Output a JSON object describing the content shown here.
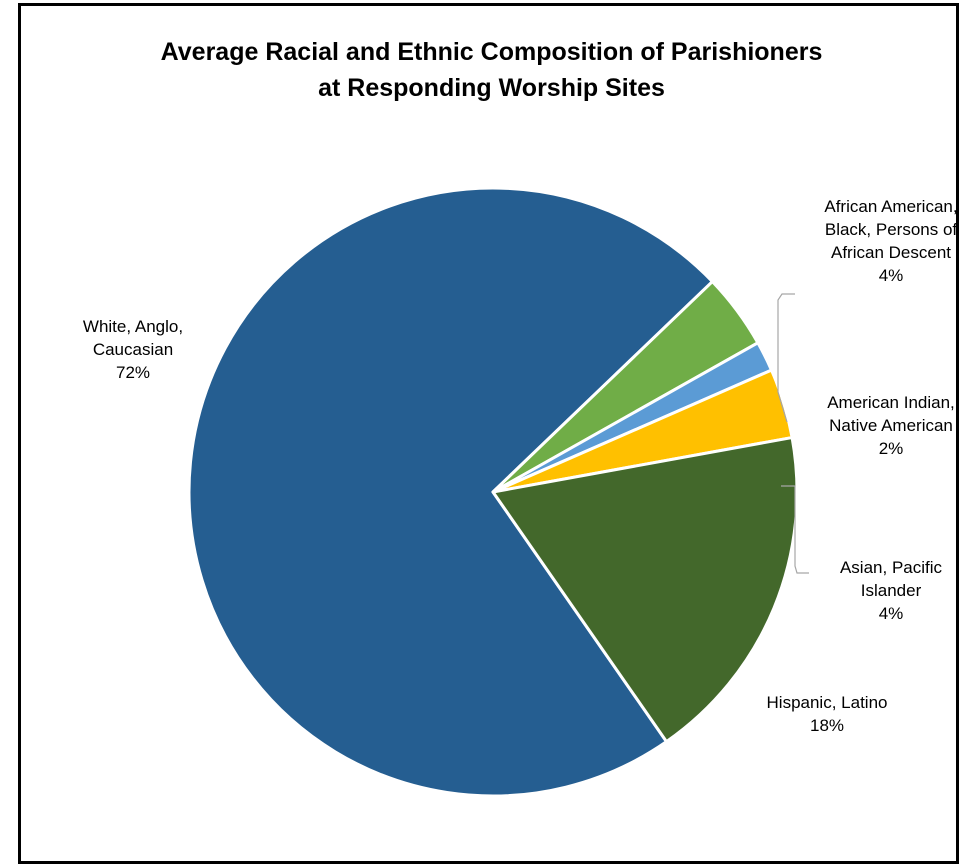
{
  "chart_data": {
    "type": "pie",
    "title": "Average Racial and Ethnic Composition of Parishioners at Responding Worship Sites",
    "title_lines": [
      "Average Racial and Ethnic Composition of Parishioners",
      "at Responding Worship Sites"
    ],
    "legend": "none",
    "slices": [
      {
        "key": "white",
        "label": "White, Anglo, Caucasian",
        "label_lines": [
          "White, Anglo,",
          "Caucasian"
        ],
        "percent_label": "72%",
        "value": 72.5,
        "color": "#255E91"
      },
      {
        "key": "african",
        "label": "African American, Black, Persons of African Descent",
        "label_lines": [
          "African American,",
          "Black, Persons of",
          "African Descent"
        ],
        "percent_label": "4%",
        "value": 4.0,
        "color": "#70AD47"
      },
      {
        "key": "indian",
        "label": "American Indian, Native American",
        "label_lines": [
          "American Indian,",
          "Native American"
        ],
        "percent_label": "2%",
        "value": 1.6,
        "color": "#5B9BD5"
      },
      {
        "key": "asian",
        "label": "Asian, Pacific Islander",
        "label_lines": [
          "Asian, Pacific",
          "Islander"
        ],
        "percent_label": "4%",
        "value": 3.7,
        "color": "#FFC000"
      },
      {
        "key": "hispanic",
        "label": "Hispanic, Latino",
        "label_lines": [
          "Hispanic, Latino"
        ],
        "percent_label": "18%",
        "value": 18.2,
        "color": "#43682B"
      }
    ],
    "start_angle_deg": 145.2,
    "leader_line_color": "#A6A6A6"
  }
}
